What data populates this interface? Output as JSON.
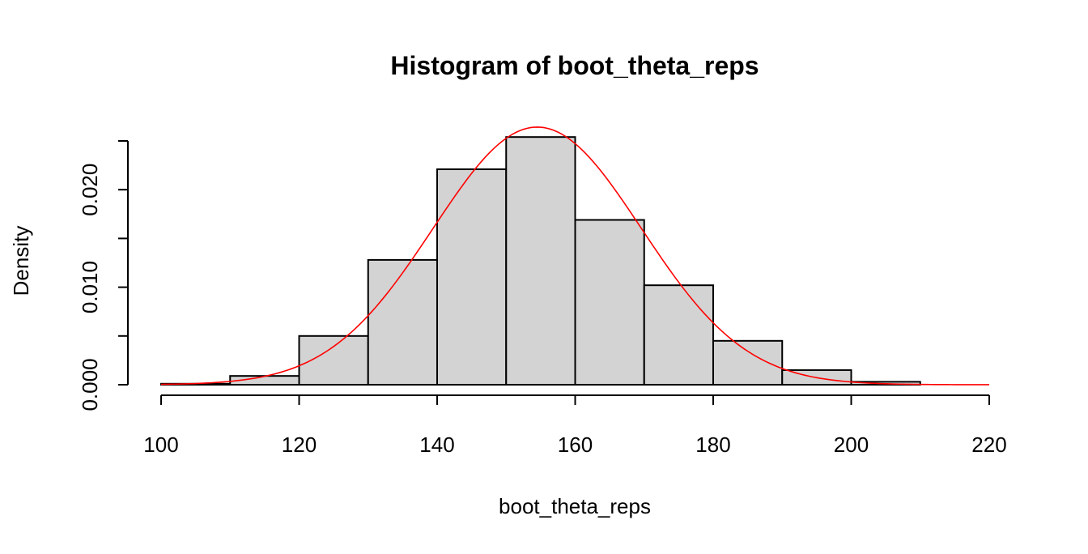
{
  "chart_data": {
    "type": "bar",
    "title": "Histogram of boot_theta_reps",
    "xlabel": "boot_theta_reps",
    "ylabel": "Density",
    "bins": [
      {
        "start": 100,
        "end": 110,
        "density": 0.0001
      },
      {
        "start": 110,
        "end": 120,
        "density": 0.0009
      },
      {
        "start": 120,
        "end": 130,
        "density": 0.005
      },
      {
        "start": 130,
        "end": 140,
        "density": 0.0128
      },
      {
        "start": 140,
        "end": 150,
        "density": 0.0221
      },
      {
        "start": 150,
        "end": 160,
        "density": 0.0254
      },
      {
        "start": 160,
        "end": 170,
        "density": 0.0169
      },
      {
        "start": 170,
        "end": 180,
        "density": 0.0102
      },
      {
        "start": 180,
        "end": 190,
        "density": 0.0045
      },
      {
        "start": 190,
        "end": 200,
        "density": 0.0015
      },
      {
        "start": 200,
        "end": 210,
        "density": 0.0003
      }
    ],
    "density_curve": {
      "type": "normal",
      "mean": 154.5,
      "sd": 15.1
    },
    "xlim": [
      100,
      220
    ],
    "ylim": [
      0,
      0.025
    ],
    "x_ticks": [
      100,
      120,
      140,
      160,
      180,
      200,
      220
    ],
    "y_ticks": [
      0,
      0.005,
      0.01,
      0.015,
      0.02,
      0.025
    ],
    "y_tick_labels": [
      "0.000",
      "",
      "0.010",
      "",
      "0.020",
      ""
    ],
    "bar_fill": "#d3d3d3",
    "bar_stroke": "#000000",
    "curve_color": "#ff0000",
    "grid": false,
    "legend": "none"
  }
}
